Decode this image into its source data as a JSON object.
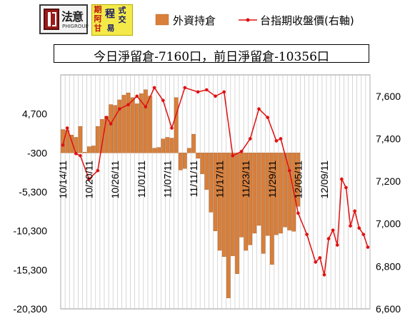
{
  "header": {
    "logo_left": {
      "name": "法意",
      "sub": "PHIGROUP"
    },
    "logo_right": {
      "chars": [
        "期",
        "阿",
        "甘",
        "程",
        "式",
        "交",
        "易"
      ]
    }
  },
  "title": "今日淨留倉-7160口，前日淨留倉-10356口",
  "colors": {
    "bar": "#d97f3a",
    "bar_edge": "#a85a20",
    "line": "#e01010",
    "grid": "#bdbdbd"
  },
  "chart_data": {
    "type": "bar+line",
    "legend_placement": "top-right",
    "legend": [
      "外資持倉",
      "台指期收盤價(右軸)"
    ],
    "x_tick_labels": [
      "10/14/11",
      "10/20/11",
      "10/26/11",
      "11/01/11",
      "11/07/11",
      "11/11/11",
      "11/17/11",
      "11/23/11",
      "11/29/11",
      "12/05/11",
      "12/09/11"
    ],
    "x_tick_index": [
      0,
      6,
      12,
      18,
      24,
      30,
      36,
      42,
      48,
      54,
      60
    ],
    "y_left": {
      "min": -20300,
      "max": 9700,
      "ticks": [
        -20300,
        -15300,
        -10300,
        -5300,
        -300,
        4700
      ]
    },
    "y_right": {
      "min": 6600,
      "max": 7700,
      "ticks": [
        6600,
        6800,
        7000,
        7200,
        7400,
        7600
      ]
    },
    "grid": true,
    "series": [
      {
        "name": "外資持倉",
        "kind": "bar",
        "axis": "left",
        "values": [
          2700,
          2600,
          2000,
          1700,
          3100,
          -200,
          500,
          600,
          3100,
          4000,
          4400,
          5900,
          5800,
          6500,
          7100,
          7400,
          6800,
          6000,
          7300,
          7800,
          7000,
          300,
          400,
          1500,
          1700,
          1600,
          6800,
          -2500,
          -2300,
          300,
          2100,
          -1000,
          -3000,
          -5000,
          -7900,
          -10300,
          -12800,
          -13600,
          -18900,
          -13500,
          -15800,
          -11100,
          -12800,
          -12100,
          -10600,
          -9600,
          -13200,
          -10900,
          -14600,
          -10800,
          -10600,
          -9800,
          -10200,
          -10356,
          -7160
        ],
        "x_index": [
          0,
          1,
          2,
          3,
          4,
          5,
          6,
          7,
          8,
          9,
          10,
          11,
          12,
          13,
          14,
          15,
          16,
          17,
          18,
          19,
          20,
          21,
          22,
          23,
          24,
          25,
          26,
          27,
          28,
          29,
          30,
          31,
          32,
          33,
          34,
          35,
          36,
          37,
          38,
          39,
          40,
          41,
          42,
          43,
          44,
          45,
          46,
          47,
          48,
          49,
          50,
          51,
          52,
          53,
          54
        ]
      },
      {
        "name": "台指期收盤價(右軸)",
        "kind": "line",
        "axis": "right",
        "values": [
          7370,
          7450,
          7330,
          7320,
          7210,
          7250,
          7500,
          7470,
          7540,
          7560,
          7600,
          7550,
          7640,
          7580,
          7450,
          7640,
          7620,
          7630,
          7600,
          7620,
          7320,
          7340,
          7400,
          7540,
          7500,
          7390,
          7400,
          7250,
          7050,
          6950,
          6820,
          6840,
          6760,
          6930,
          6970,
          6900,
          7210,
          7170,
          6990,
          7060,
          6980,
          6950,
          6890
        ],
        "x_index": [
          0,
          1,
          3,
          4,
          6,
          8,
          10,
          11,
          13,
          15,
          17,
          19,
          21,
          23,
          25,
          28,
          31,
          33,
          35,
          37,
          39,
          41,
          43,
          45,
          47,
          49,
          50,
          52,
          54,
          56,
          58,
          59,
          60,
          61,
          62,
          63,
          64,
          65,
          66,
          67,
          68,
          69,
          70
        ]
      }
    ]
  }
}
